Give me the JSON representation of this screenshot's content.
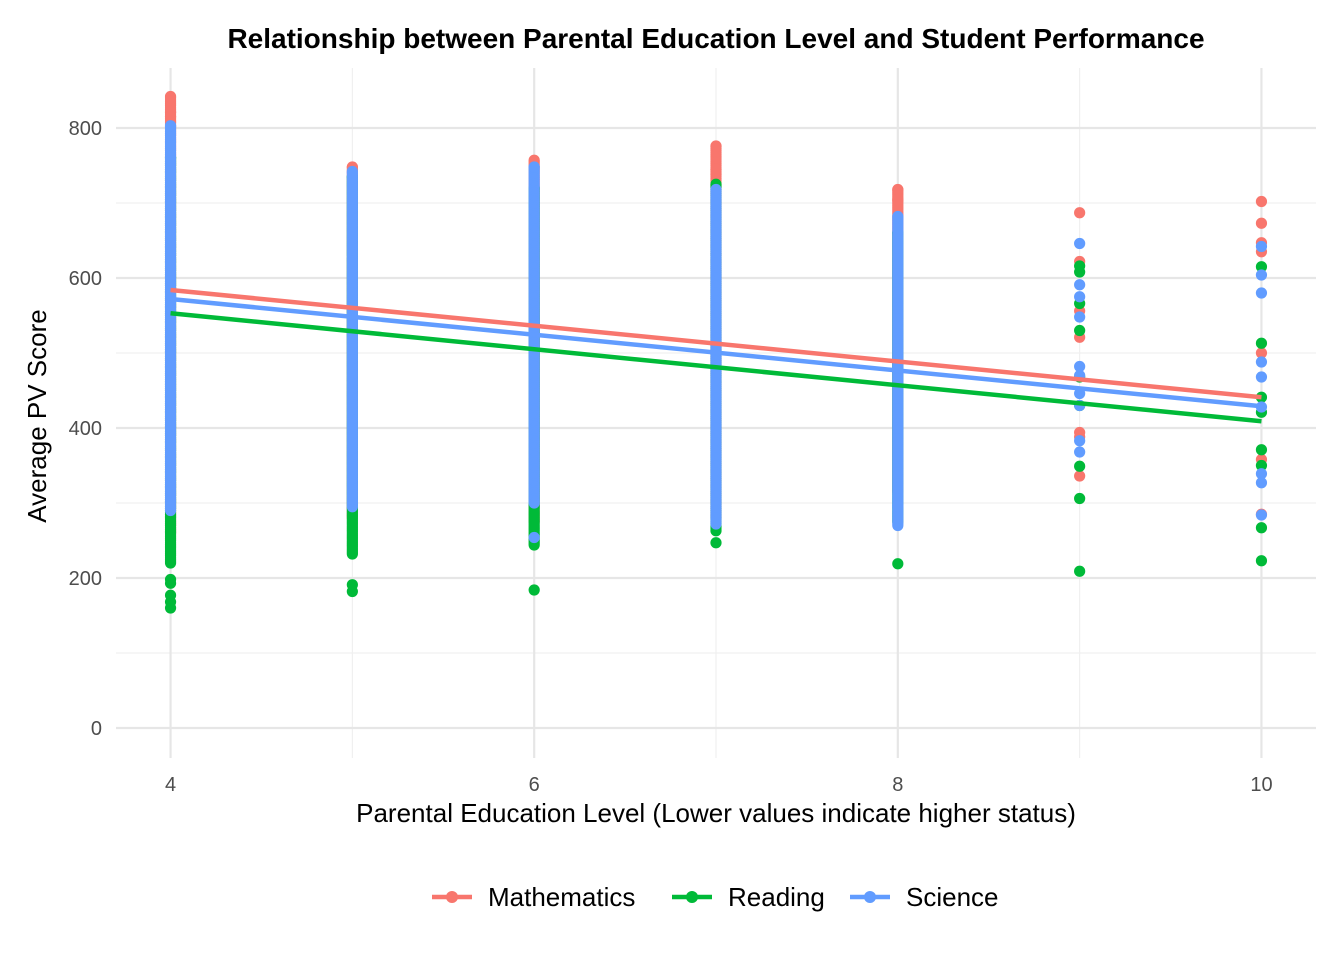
{
  "chart_data": {
    "type": "scatter",
    "title": "Relationship between Parental Education Level and Student Performance",
    "xlabel": "Parental Education Level (Lower values indicate higher status)",
    "ylabel": "Average PV Score",
    "xlim": [
      3.7,
      10.3
    ],
    "ylim": [
      -40,
      880
    ],
    "x_ticks": [
      "4",
      "6",
      "8",
      "10"
    ],
    "y_ticks": [
      "0",
      "200",
      "400",
      "600",
      "800"
    ],
    "grid": true,
    "legend_position": "bottom",
    "series": [
      {
        "name": "Mathematics",
        "color": "#F8766D",
        "trend": {
          "x": [
            4,
            10
          ],
          "y": [
            584,
            441
          ]
        },
        "ranges": [
          {
            "x": 4,
            "min": 260,
            "max": 842,
            "extra": [
              821,
              815,
              808
            ]
          },
          {
            "x": 5,
            "min": 280,
            "max": 748,
            "extra": []
          },
          {
            "x": 6,
            "min": 275,
            "max": 757,
            "extra": []
          },
          {
            "x": 7,
            "min": 280,
            "max": 776,
            "extra": [
              745,
              738
            ]
          },
          {
            "x": 8,
            "min": 315,
            "max": 718,
            "extra": [
              704
            ]
          }
        ],
        "points": [
          {
            "x": 9,
            "y": 687
          },
          {
            "x": 9,
            "y": 622
          },
          {
            "x": 9,
            "y": 556
          },
          {
            "x": 9,
            "y": 521
          },
          {
            "x": 9,
            "y": 394
          },
          {
            "x": 9,
            "y": 388
          },
          {
            "x": 9,
            "y": 336
          },
          {
            "x": 10,
            "y": 702
          },
          {
            "x": 10,
            "y": 673
          },
          {
            "x": 10,
            "y": 647
          },
          {
            "x": 10,
            "y": 635
          },
          {
            "x": 10,
            "y": 500
          },
          {
            "x": 10,
            "y": 358
          },
          {
            "x": 10,
            "y": 285
          }
        ]
      },
      {
        "name": "Reading",
        "color": "#00BA38",
        "trend": {
          "x": [
            4,
            10
          ],
          "y": [
            553,
            409
          ]
        },
        "ranges": [
          {
            "x": 4,
            "min": 220,
            "max": 760,
            "extra": [
              198,
              193,
              177,
              168,
              160
            ]
          },
          {
            "x": 5,
            "min": 232,
            "max": 735,
            "extra": [
              191,
              182
            ]
          },
          {
            "x": 6,
            "min": 244,
            "max": 720,
            "extra": [
              184
            ]
          },
          {
            "x": 7,
            "min": 263,
            "max": 725,
            "extra": [
              247
            ]
          },
          {
            "x": 8,
            "min": 275,
            "max": 660,
            "extra": [
              219
            ]
          }
        ],
        "points": [
          {
            "x": 9,
            "y": 616
          },
          {
            "x": 9,
            "y": 608
          },
          {
            "x": 9,
            "y": 566
          },
          {
            "x": 9,
            "y": 530
          },
          {
            "x": 9,
            "y": 468
          },
          {
            "x": 9,
            "y": 430
          },
          {
            "x": 9,
            "y": 349
          },
          {
            "x": 9,
            "y": 306
          },
          {
            "x": 9,
            "y": 209
          },
          {
            "x": 10,
            "y": 615
          },
          {
            "x": 10,
            "y": 513
          },
          {
            "x": 10,
            "y": 441
          },
          {
            "x": 10,
            "y": 421
          },
          {
            "x": 10,
            "y": 371
          },
          {
            "x": 10,
            "y": 350
          },
          {
            "x": 10,
            "y": 267
          },
          {
            "x": 10,
            "y": 223
          }
        ]
      },
      {
        "name": "Science",
        "color": "#619CFF",
        "trend": {
          "x": [
            4,
            10
          ],
          "y": [
            572,
            429
          ]
        },
        "ranges": [
          {
            "x": 4,
            "min": 290,
            "max": 803,
            "extra": []
          },
          {
            "x": 5,
            "min": 295,
            "max": 742,
            "extra": []
          },
          {
            "x": 6,
            "min": 300,
            "max": 748,
            "extra": [
              254
            ]
          },
          {
            "x": 7,
            "min": 272,
            "max": 718,
            "extra": []
          },
          {
            "x": 8,
            "min": 270,
            "max": 682,
            "extra": [
              296
            ]
          }
        ],
        "points": [
          {
            "x": 9,
            "y": 646
          },
          {
            "x": 9,
            "y": 591
          },
          {
            "x": 9,
            "y": 575
          },
          {
            "x": 9,
            "y": 548
          },
          {
            "x": 9,
            "y": 482
          },
          {
            "x": 9,
            "y": 470
          },
          {
            "x": 9,
            "y": 446
          },
          {
            "x": 9,
            "y": 430
          },
          {
            "x": 9,
            "y": 383
          },
          {
            "x": 9,
            "y": 368
          },
          {
            "x": 10,
            "y": 642
          },
          {
            "x": 10,
            "y": 604
          },
          {
            "x": 10,
            "y": 580
          },
          {
            "x": 10,
            "y": 488
          },
          {
            "x": 10,
            "y": 468
          },
          {
            "x": 10,
            "y": 428
          },
          {
            "x": 10,
            "y": 339
          },
          {
            "x": 10,
            "y": 327
          },
          {
            "x": 10,
            "y": 284
          }
        ]
      }
    ]
  }
}
